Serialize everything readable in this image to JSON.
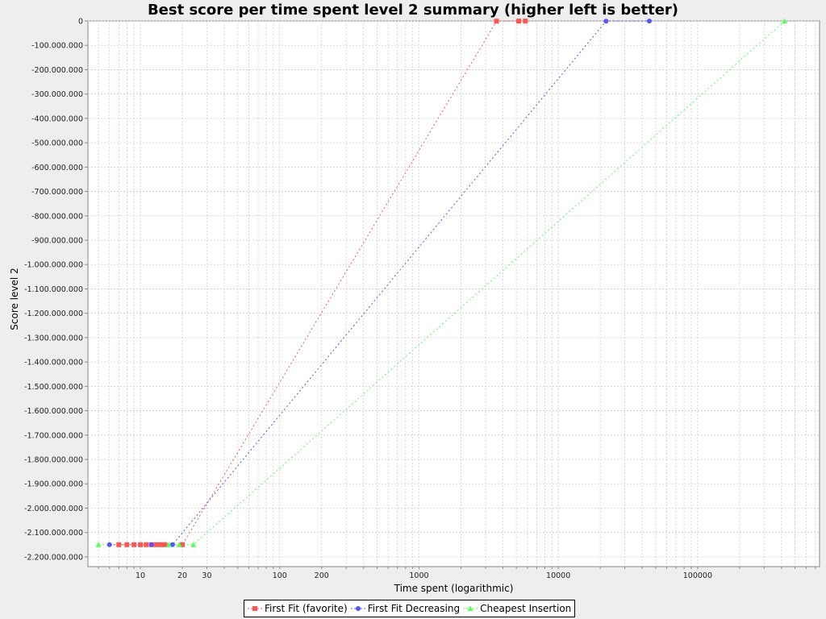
{
  "chart_data": {
    "type": "scatter",
    "title": "Best score per time spent level 2 summary (higher left is better)",
    "xlabel": "Time spent (logarithmic)",
    "ylabel": "Score level 2",
    "x_scale": "log",
    "xlim": [
      4.2,
      750000
    ],
    "ylim": [
      -2240000000,
      0
    ],
    "x_tick_labels": [
      {
        "value": 10,
        "label": "10"
      },
      {
        "value": 20,
        "label": "20"
      },
      {
        "value": 30,
        "label": "30"
      },
      {
        "value": 100,
        "label": "100"
      },
      {
        "value": 200,
        "label": "200"
      },
      {
        "value": 1000,
        "label": "1000"
      },
      {
        "value": 10000,
        "label": "10000"
      },
      {
        "value": 100000,
        "label": "100000"
      }
    ],
    "y_tick_labels": [
      {
        "value": 0,
        "label": "0"
      },
      {
        "value": -100000000,
        "label": "-100.000.000"
      },
      {
        "value": -200000000,
        "label": "-200.000.000"
      },
      {
        "value": -300000000,
        "label": "-300.000.000"
      },
      {
        "value": -400000000,
        "label": "-400.000.000"
      },
      {
        "value": -500000000,
        "label": "-500.000.000"
      },
      {
        "value": -600000000,
        "label": "-600.000.000"
      },
      {
        "value": -700000000,
        "label": "-700.000.000"
      },
      {
        "value": -800000000,
        "label": "-800.000.000"
      },
      {
        "value": -900000000,
        "label": "-900.000.000"
      },
      {
        "value": -1000000000,
        "label": "-1.000.000.000"
      },
      {
        "value": -1100000000,
        "label": "-1.100.000.000"
      },
      {
        "value": -1200000000,
        "label": "-1.200.000.000"
      },
      {
        "value": -1300000000,
        "label": "-1.300.000.000"
      },
      {
        "value": -1400000000,
        "label": "-1.400.000.000"
      },
      {
        "value": -1500000000,
        "label": "-1.500.000.000"
      },
      {
        "value": -1600000000,
        "label": "-1.600.000.000"
      },
      {
        "value": -1700000000,
        "label": "-1.700.000.000"
      },
      {
        "value": -1800000000,
        "label": "-1.800.000.000"
      },
      {
        "value": -1900000000,
        "label": "-1.900.000.000"
      },
      {
        "value": -2000000000,
        "label": "-2.000.000.000"
      },
      {
        "value": -2100000000,
        "label": "-2.100.000.000"
      },
      {
        "value": -2200000000,
        "label": "-2.200.000.000"
      }
    ],
    "grid": true,
    "legend_position": "bottom",
    "series": [
      {
        "name": "First Fit (favorite)",
        "color": "#ff5555",
        "marker": "square",
        "x": [
          7,
          8,
          9,
          10,
          11,
          12,
          13,
          14,
          15,
          20,
          3600,
          5200,
          5800
        ],
        "y": [
          -2150000000,
          -2150000000,
          -2150000000,
          -2150000000,
          -2150000000,
          -2150000000,
          -2150000000,
          -2150000000,
          -2150000000,
          -2150000000,
          -1000000,
          -500000,
          -300000
        ]
      },
      {
        "name": "First Fit Decreasing",
        "color": "#5555ff",
        "marker": "circle",
        "x": [
          6,
          12,
          17,
          22000,
          45000
        ],
        "y": [
          -2150000000,
          -2150000000,
          -2150000000,
          -800000,
          -400000
        ]
      },
      {
        "name": "Cheapest Insertion",
        "color": "#55ff55",
        "marker": "triangle",
        "x": [
          5,
          16,
          19,
          24,
          420000
        ],
        "y": [
          -2150000000,
          -2150000000,
          -2150000000,
          -2150000000,
          -500000
        ]
      }
    ]
  }
}
